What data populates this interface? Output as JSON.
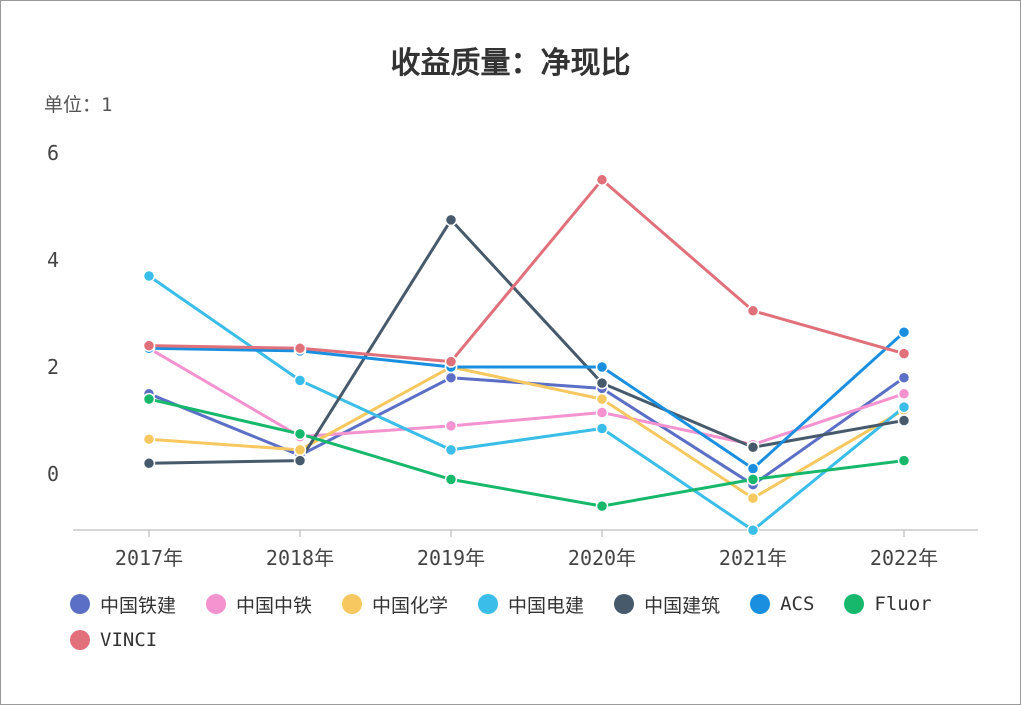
{
  "chart_data": {
    "type": "line",
    "title": "收益质量：净现比",
    "unit_label": "单位：1",
    "categories": [
      "2017年",
      "2018年",
      "2019年",
      "2020年",
      "2021年",
      "2022年"
    ],
    "yticks": [
      "6",
      "4",
      "2",
      "0"
    ],
    "ylim": [
      -1,
      6
    ],
    "grid": false,
    "legend_position": "bottom",
    "series": [
      {
        "name": "中国铁建",
        "color": "#5b6fc6",
        "values": [
          1.5,
          0.35,
          1.8,
          1.6,
          -0.2,
          1.8
        ]
      },
      {
        "name": "中国中铁",
        "color": "#f592d0",
        "values": [
          2.35,
          0.7,
          0.9,
          1.15,
          0.55,
          1.5
        ]
      },
      {
        "name": "中国化学",
        "color": "#f6c85f",
        "values": [
          0.65,
          0.45,
          2.0,
          1.4,
          -0.45,
          1.2
        ]
      },
      {
        "name": "中国电建",
        "color": "#3abde8",
        "values": [
          3.7,
          1.75,
          0.45,
          0.85,
          -1.05,
          1.25
        ]
      },
      {
        "name": "中国建筑",
        "color": "#475a6c",
        "values": [
          0.2,
          0.25,
          4.75,
          1.7,
          0.5,
          1.0
        ]
      },
      {
        "name": "ACS",
        "color": "#1a8fe0",
        "values": [
          2.35,
          2.3,
          2.0,
          2.0,
          0.1,
          2.65
        ]
      },
      {
        "name": "Fluor",
        "color": "#17b86c",
        "values": [
          1.4,
          0.75,
          -0.1,
          -0.6,
          -0.1,
          0.25
        ]
      },
      {
        "name": "VINCI",
        "color": "#e0707a",
        "values": [
          2.4,
          2.35,
          2.1,
          5.5,
          3.05,
          2.25
        ]
      }
    ]
  }
}
